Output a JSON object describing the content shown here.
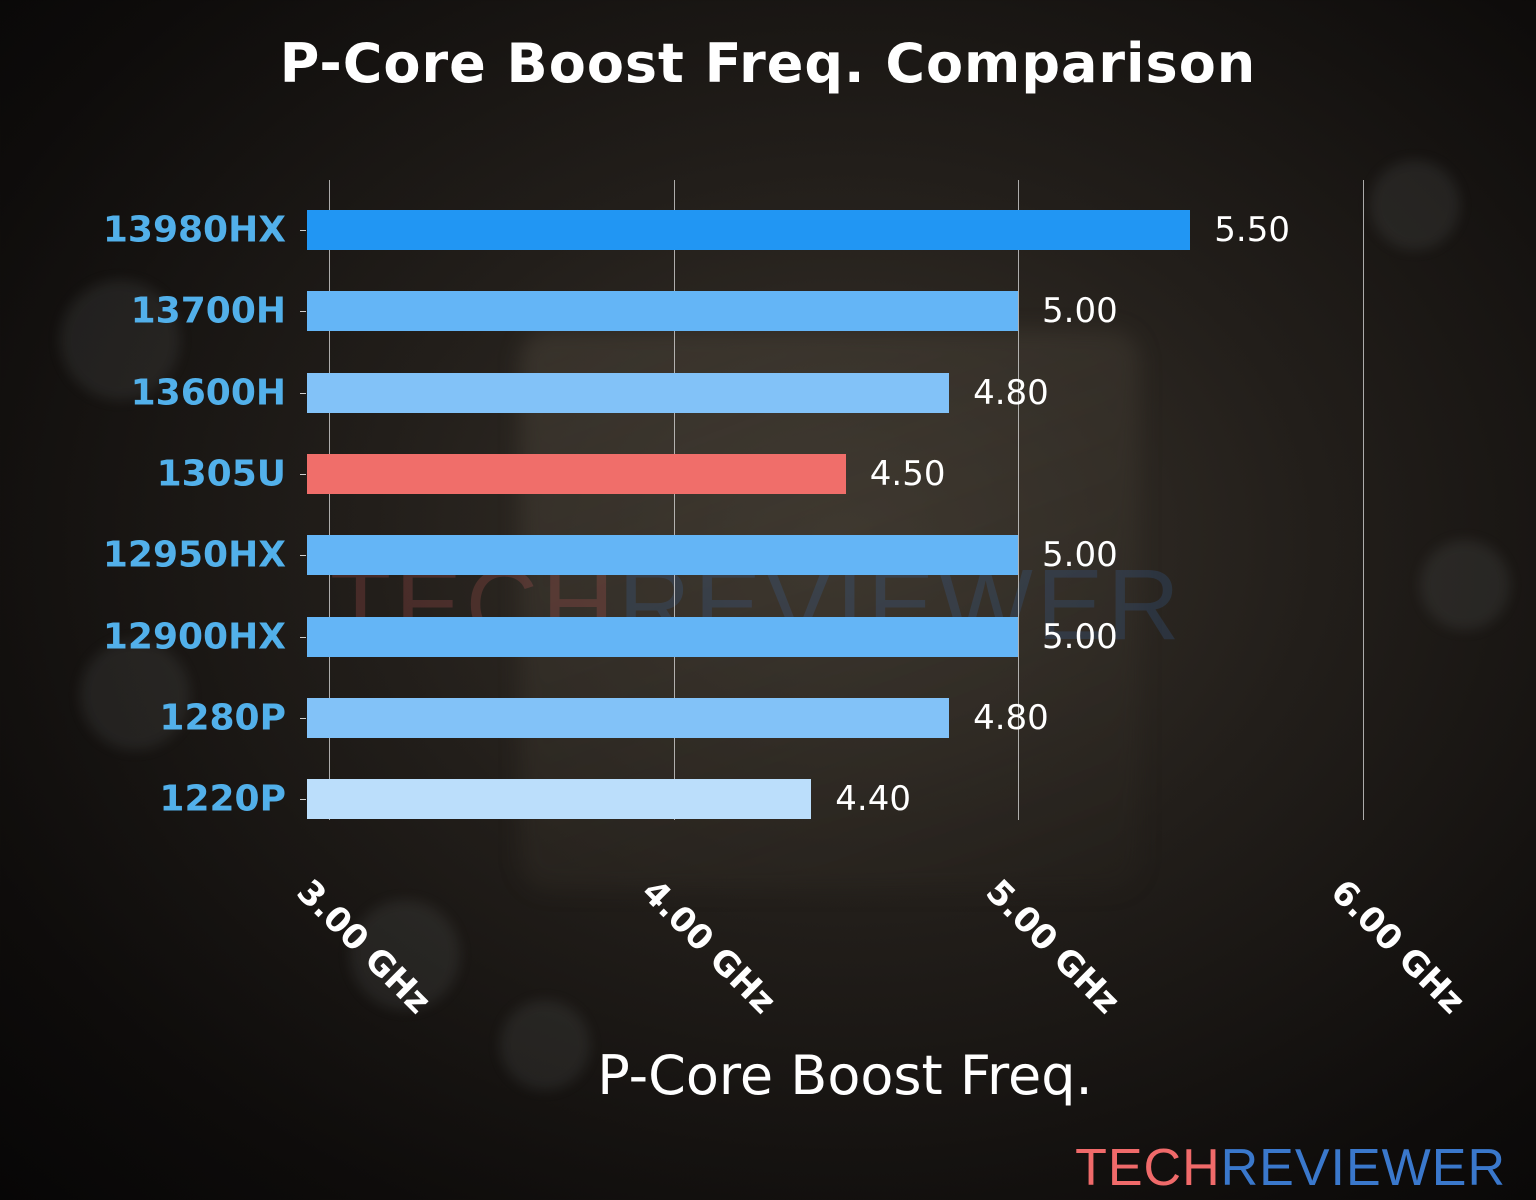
{
  "chart_data": {
    "type": "bar",
    "orientation": "horizontal",
    "title": "P-Core Boost Freq. Comparison",
    "xlabel": "P-Core Boost Freq.",
    "ylabel": "",
    "categories": [
      "13980HX",
      "13700H",
      "13600H",
      "1305U",
      "12950HX",
      "12900HX",
      "1280P",
      "1220P"
    ],
    "values": [
      5.5,
      5.0,
      4.8,
      4.5,
      5.0,
      5.0,
      4.8,
      4.4
    ],
    "value_labels": [
      "5.50",
      "5.00",
      "4.80",
      "4.50",
      "5.00",
      "5.00",
      "4.80",
      "4.40"
    ],
    "bar_colors": [
      "#2196f3",
      "#64b5f6",
      "#82c2f8",
      "#f06e6a",
      "#64b5f6",
      "#64b5f6",
      "#82c2f8",
      "#bbdefb"
    ],
    "highlight": "1305U",
    "x_ticks": [
      "3.00 GHz",
      "4.00 GHz",
      "5.00 GHz",
      "6.00 GHz"
    ],
    "x_tick_values": [
      3,
      4,
      5,
      6
    ],
    "xlim": [
      2.94,
      6.1
    ],
    "grid": "vertical",
    "legend": null
  },
  "branding": {
    "logo_part1": "TECH",
    "logo_part2": "REVIEWER"
  },
  "colors": {
    "label_blue": "#52b0ea",
    "logo_red": "#f06a6a",
    "logo_blue": "#3a78cc"
  }
}
